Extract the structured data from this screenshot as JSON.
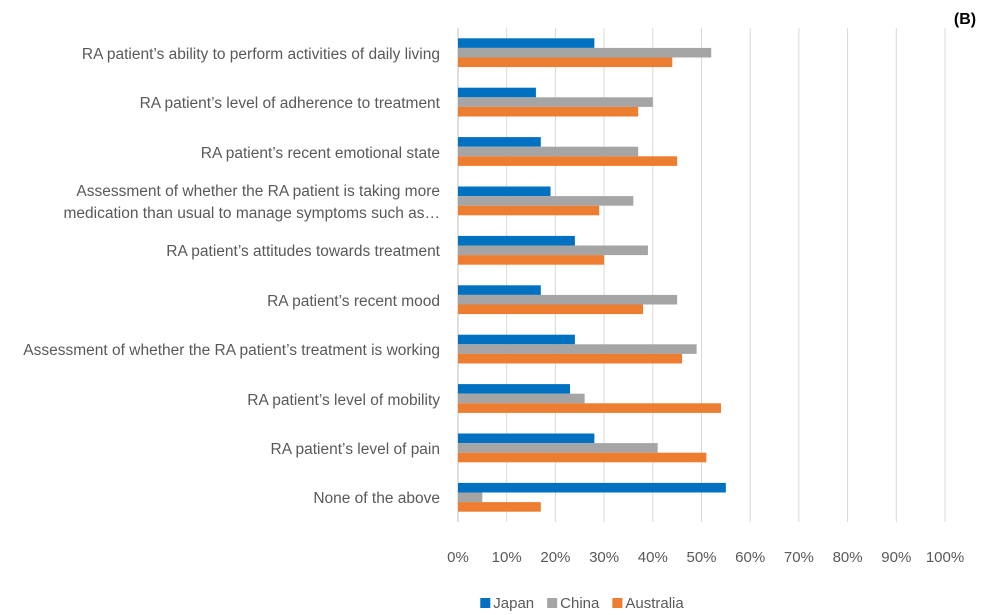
{
  "chart_data": {
    "type": "hbar",
    "annotation": "(B)",
    "categories": [
      "RA patient’s ability to perform activities of daily living",
      "RA patient’s level of adherence to treatment",
      "RA patient’s recent emotional state",
      "Assessment of whether the RA patient is taking more medication than usual to manage symptoms such as…",
      "RA patient’s attitudes towards treatment",
      "RA patient’s recent mood",
      "Assessment of whether the RA patient’s treatment is working",
      "RA patient’s level of mobility",
      "RA patient’s level of pain",
      "None of the above"
    ],
    "series": [
      {
        "name": "Japan",
        "color": "#0070c0",
        "values": [
          28,
          16,
          17,
          19,
          24,
          17,
          24,
          23,
          28,
          55
        ]
      },
      {
        "name": "China",
        "color": "#a5a5a5",
        "values": [
          52,
          40,
          37,
          36,
          39,
          45,
          49,
          26,
          41,
          5
        ]
      },
      {
        "name": "Australia",
        "color": "#ed7d31",
        "values": [
          44,
          37,
          45,
          29,
          30,
          38,
          46,
          54,
          51,
          17
        ]
      }
    ],
    "xlim": [
      0,
      100
    ],
    "xticks": [
      {
        "value": 0,
        "label": "0%"
      },
      {
        "value": 10,
        "label": "10%"
      },
      {
        "value": 20,
        "label": "20%"
      },
      {
        "value": 30,
        "label": "30%"
      },
      {
        "value": 40,
        "label": "40%"
      },
      {
        "value": 50,
        "label": "50%"
      },
      {
        "value": 60,
        "label": "60%"
      },
      {
        "value": 70,
        "label": "70%"
      },
      {
        "value": 80,
        "label": "80%"
      },
      {
        "value": 90,
        "label": "90%"
      },
      {
        "value": 100,
        "label": "100%"
      }
    ],
    "grid": true,
    "legend": "bottom"
  }
}
